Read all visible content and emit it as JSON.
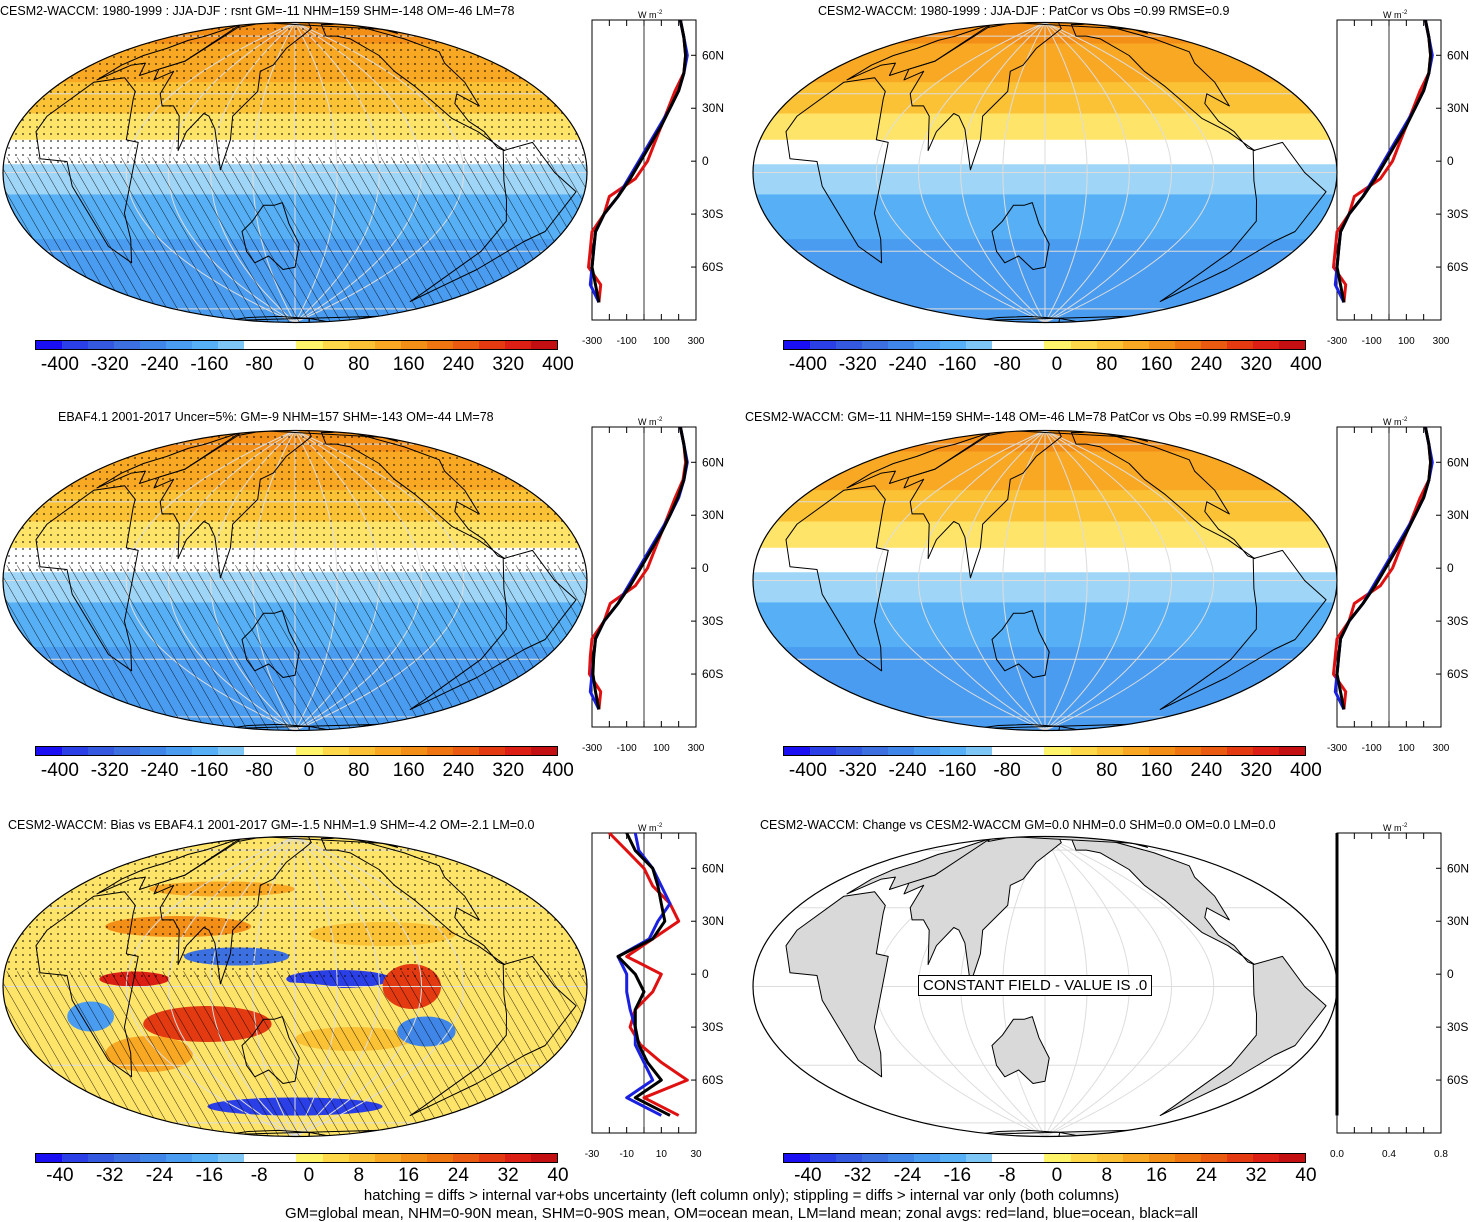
{
  "colorbar_colors": [
    "#1a0ff2",
    "#2b3fe6",
    "#3558e0",
    "#3c6fe0",
    "#3f86e8",
    "#4a9cf0",
    "#57b0f5",
    "#7dc6f5",
    "#ffffff",
    "#ffffff",
    "#fff46a",
    "#ffd94a",
    "#fbc235",
    "#f8a823",
    "#f38e17",
    "#ef7510",
    "#ea5a10",
    "#e33a12",
    "#db1f14",
    "#c40f12"
  ],
  "colorbar_labels_full": [
    "-400",
    "-320",
    "-240",
    "-160",
    "-80",
    "0",
    "80",
    "160",
    "240",
    "320",
    "400"
  ],
  "colorbar_labels_diff": [
    "-40",
    "-32",
    "-24",
    "-16",
    "-8",
    "0",
    "8",
    "16",
    "24",
    "32",
    "40"
  ],
  "zonal_lat_labels": [
    "60N",
    "30N",
    "0",
    "30S",
    "60S"
  ],
  "zonal_unit": "W m",
  "zonal_unit_sup": "-2",
  "zonal_x_full": [
    "-300",
    "-100",
    "100",
    "300"
  ],
  "zonal_x_diff": [
    "-30",
    "-10",
    "10",
    "30"
  ],
  "zonal_x_const": [
    "0.0",
    "0.4",
    "0.8"
  ],
  "panels": [
    {
      "title": "CESM2-WACCM: 1980-1999 : JJA-DJF : rsnt GM=-11 NHM=159 SHM=-148 OM=-46 LM=78"
    },
    {
      "title": "CESM2-WACCM: 1980-1999 : JJA-DJF : PatCor vs Obs =0.99 RMSE=0.9"
    },
    {
      "title": "EBAF4.1 2001-2017 Uncer=5%: GM=-9 NHM=157 SHM=-143 OM=-44 LM=78"
    },
    {
      "title": "CESM2-WACCM: GM=-11 NHM=159 SHM=-148 OM=-46 LM=78 PatCor vs Obs =0.99 RMSE=0.9"
    },
    {
      "title": "CESM2-WACCM: Bias vs EBAF4.1 2001-2017 GM=-1.5 NHM=1.9 SHM=-4.2 OM=-2.1 LM=0.0"
    },
    {
      "title": "CESM2-WACCM: Change vs CESM2-WACCM GM=0.0 NHM=0.0 SHM=0.0 OM=0.0 LM=0.0"
    }
  ],
  "constant_field_label": "CONSTANT FIELD - VALUE IS .0",
  "footer_lines": [
    "hatching = diffs > internal var+obs uncertainty (left column only); stippling = diffs > internal var only (both columns)",
    "GM=global mean, NHM=0-90N mean, SHM=0-90S mean, OM=ocean mean, LM=land mean; zonal avgs: red=land, blue=ocean, black=all"
  ],
  "chart_data": [
    {
      "type": "heatmap",
      "title": "CESM2-WACCM: 1980-1999 : JJA-DJF : rsnt GM=-11 NHM=159 SHM=-148 OM=-46 LM=78",
      "colorbar": [
        -400,
        -320,
        -240,
        -160,
        -80,
        0,
        80,
        160,
        240,
        320,
        400
      ],
      "zonal": {
        "lat": [
          80,
          70,
          60,
          50,
          40,
          30,
          20,
          10,
          0,
          -10,
          -20,
          -30,
          -40,
          -50,
          -60,
          -70,
          -80
        ],
        "all": [
          210,
          230,
          240,
          230,
          200,
          150,
          100,
          40,
          -20,
          -80,
          -150,
          -230,
          -280,
          -290,
          -300,
          -280,
          -260
        ],
        "land": [
          210,
          230,
          240,
          230,
          180,
          140,
          100,
          60,
          20,
          -50,
          -200,
          -230,
          -300,
          -310,
          -320,
          -250,
          -260
        ],
        "ocean": [
          210,
          230,
          250,
          230,
          200,
          150,
          90,
          30,
          -30,
          -90,
          -150,
          -230,
          -280,
          -290,
          -300,
          -310,
          -260
        ],
        "xlim": [
          -300,
          300
        ]
      }
    },
    {
      "type": "heatmap",
      "title": "CESM2-WACCM: 1980-1999 : JJA-DJF : PatCor vs Obs =0.99 RMSE=0.9",
      "colorbar": [
        -400,
        -320,
        -240,
        -160,
        -80,
        0,
        80,
        160,
        240,
        320,
        400
      ],
      "zonal": {
        "lat": [
          80,
          70,
          60,
          50,
          40,
          30,
          20,
          10,
          0,
          -10,
          -20,
          -30,
          -40,
          -50,
          -60,
          -70,
          -80
        ],
        "all": [
          210,
          230,
          240,
          230,
          200,
          150,
          100,
          40,
          -20,
          -80,
          -150,
          -230,
          -280,
          -290,
          -300,
          -280,
          -260
        ],
        "land": [
          210,
          230,
          240,
          230,
          180,
          140,
          100,
          60,
          20,
          -50,
          -200,
          -230,
          -300,
          -310,
          -320,
          -250,
          -260
        ],
        "ocean": [
          210,
          230,
          250,
          230,
          200,
          150,
          90,
          30,
          -30,
          -90,
          -150,
          -230,
          -280,
          -290,
          -300,
          -310,
          -260
        ],
        "xlim": [
          -300,
          300
        ]
      }
    },
    {
      "type": "heatmap",
      "title": "EBAF4.1 2001-2017 Uncer=5%: GM=-9 NHM=157 SHM=-143 OM=-44 LM=78",
      "colorbar": [
        -400,
        -320,
        -240,
        -160,
        -80,
        0,
        80,
        160,
        240,
        320,
        400
      ],
      "zonal": {
        "lat": [
          80,
          70,
          60,
          50,
          40,
          30,
          20,
          10,
          0,
          -10,
          -20,
          -30,
          -40,
          -50,
          -60,
          -70,
          -80
        ],
        "all": [
          210,
          230,
          245,
          230,
          195,
          150,
          100,
          40,
          -20,
          -80,
          -150,
          -230,
          -280,
          -290,
          -295,
          -280,
          -260
        ],
        "land": [
          210,
          230,
          240,
          225,
          180,
          140,
          100,
          60,
          20,
          -50,
          -195,
          -230,
          -300,
          -310,
          -315,
          -250,
          -260
        ],
        "ocean": [
          210,
          230,
          250,
          230,
          200,
          150,
          90,
          30,
          -30,
          -90,
          -150,
          -230,
          -280,
          -290,
          -300,
          -310,
          -260
        ],
        "xlim": [
          -300,
          300
        ]
      }
    },
    {
      "type": "heatmap",
      "title": "CESM2-WACCM: GM=-11 NHM=159 SHM=-148 OM=-46 LM=78 PatCor vs Obs =0.99 RMSE=0.9",
      "colorbar": [
        -400,
        -320,
        -240,
        -160,
        -80,
        0,
        80,
        160,
        240,
        320,
        400
      ],
      "zonal": {
        "lat": [
          80,
          70,
          60,
          50,
          40,
          30,
          20,
          10,
          0,
          -10,
          -20,
          -30,
          -40,
          -50,
          -60,
          -70,
          -80
        ],
        "all": [
          210,
          230,
          240,
          230,
          200,
          150,
          100,
          40,
          -20,
          -80,
          -150,
          -230,
          -280,
          -290,
          -300,
          -280,
          -260
        ],
        "land": [
          210,
          230,
          240,
          230,
          180,
          140,
          100,
          60,
          20,
          -50,
          -200,
          -230,
          -300,
          -310,
          -320,
          -250,
          -260
        ],
        "ocean": [
          210,
          230,
          250,
          230,
          200,
          150,
          90,
          30,
          -30,
          -90,
          -150,
          -230,
          -280,
          -290,
          -300,
          -310,
          -260
        ],
        "xlim": [
          -300,
          300
        ]
      }
    },
    {
      "type": "heatmap",
      "title": "CESM2-WACCM: Bias vs EBAF4.1 2001-2017 GM=-1.5 NHM=1.9 SHM=-4.2 OM=-2.1 LM=0.0",
      "colorbar": [
        -40,
        -32,
        -24,
        -16,
        -8,
        0,
        8,
        16,
        24,
        32,
        40
      ],
      "zonal": {
        "lat": [
          80,
          70,
          60,
          50,
          40,
          30,
          20,
          10,
          0,
          -10,
          -20,
          -30,
          -40,
          -50,
          -60,
          -70,
          -80
        ],
        "all": [
          -10,
          -5,
          5,
          8,
          10,
          12,
          5,
          -15,
          -5,
          0,
          -5,
          -5,
          -3,
          2,
          10,
          -5,
          15
        ],
        "land": [
          -20,
          -10,
          0,
          5,
          15,
          20,
          5,
          -10,
          10,
          5,
          -5,
          -8,
          -2,
          10,
          25,
          0,
          20
        ],
        "ocean": [
          -5,
          -3,
          5,
          10,
          15,
          8,
          3,
          -15,
          -10,
          -10,
          -8,
          -5,
          -5,
          0,
          5,
          -10,
          10
        ],
        "xlim": [
          -30,
          30
        ]
      }
    },
    {
      "type": "heatmap",
      "title": "CESM2-WACCM: Change vs CESM2-WACCM GM=0.0 NHM=0.0 SHM=0.0 OM=0.0 LM=0.0",
      "colorbar": [
        -40,
        -32,
        -24,
        -16,
        -8,
        0,
        8,
        16,
        24,
        32,
        40
      ],
      "zonal": {
        "lat": [
          80,
          70,
          60,
          50,
          40,
          30,
          20,
          10,
          0,
          -10,
          -20,
          -30,
          -40,
          -50,
          -60,
          -70,
          -80
        ],
        "all": [
          0,
          0,
          0,
          0,
          0,
          0,
          0,
          0,
          0,
          0,
          0,
          0,
          0,
          0,
          0,
          0,
          0
        ],
        "land": [
          0,
          0,
          0,
          0,
          0,
          0,
          0,
          0,
          0,
          0,
          0,
          0,
          0,
          0,
          0,
          0,
          0
        ],
        "ocean": [
          0,
          0,
          0,
          0,
          0,
          0,
          0,
          0,
          0,
          0,
          0,
          0,
          0,
          0,
          0,
          0,
          0
        ],
        "xlim": [
          0,
          1
        ]
      }
    }
  ]
}
